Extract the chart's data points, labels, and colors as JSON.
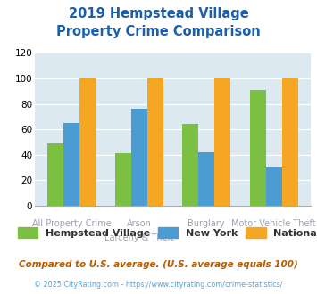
{
  "title_line1": "2019 Hempstead Village",
  "title_line2": "Property Crime Comparison",
  "hempstead": [
    49,
    41,
    64,
    91
  ],
  "newyork": [
    65,
    76,
    42,
    30
  ],
  "national": [
    100,
    100,
    100,
    100
  ],
  "green": "#7bc043",
  "blue": "#4b9cd3",
  "orange": "#f5a623",
  "ylim": [
    0,
    120
  ],
  "yticks": [
    0,
    20,
    40,
    60,
    80,
    100,
    120
  ],
  "legend_labels": [
    "Hempstead Village",
    "New York",
    "National"
  ],
  "footnote1": "Compared to U.S. average. (U.S. average equals 100)",
  "footnote2": "© 2025 CityRating.com - https://www.cityrating.com/crime-statistics/",
  "title_color": "#1a5fa8",
  "footnote1_color": "#b85c00",
  "footnote2_color": "#4da6e0",
  "plot_bg": "#dce9f0",
  "top_xlabels": {
    "1": "Arson",
    "2": "Burglary"
  },
  "bottom_xlabels": {
    "0": "All Property Crime",
    "1": "Larceny & Theft",
    "3": "Motor Vehicle Theft"
  },
  "xlabel_color": "#a0a0b0"
}
